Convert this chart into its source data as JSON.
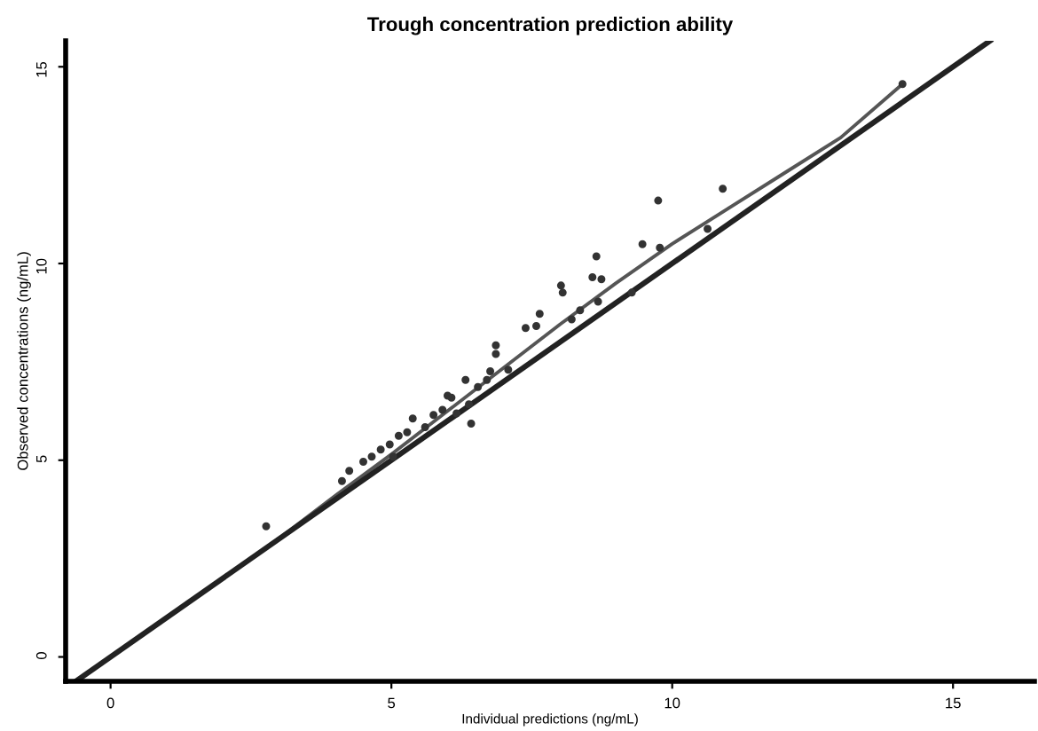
{
  "chart_data": {
    "type": "scatter",
    "title": "Trough concentration prediction ability",
    "xlabel": "Individual predictions (ng/mL)",
    "ylabel": "Observed concentrations (ng/mL)",
    "xlim": [
      -0.8,
      16.45
    ],
    "ylim": [
      -0.62,
      15.66
    ],
    "xticks": [
      0,
      5,
      10,
      15
    ],
    "yticks": [
      0,
      5,
      10,
      15
    ],
    "grid": false,
    "legend": false,
    "series": [
      {
        "color": "#333333",
        "marker": "circle",
        "x": [
          2.77,
          4.12,
          4.25,
          4.5,
          4.65,
          4.81,
          4.97,
          5.03,
          5.13,
          5.28,
          5.38,
          5.6,
          5.75,
          5.91,
          6.07,
          6.16,
          6.38,
          6.42,
          6.54,
          6.7,
          6.0,
          6.32,
          6.76,
          6.86,
          6.86,
          7.08,
          7.39,
          7.58,
          7.64,
          8.02,
          8.05,
          8.21,
          8.36,
          8.58,
          8.65,
          8.68,
          8.74,
          9.28,
          9.47,
          9.75,
          9.78,
          10.63,
          10.9,
          14.1
        ],
        "values": [
          3.32,
          4.47,
          4.73,
          4.96,
          5.09,
          5.27,
          5.4,
          5.09,
          5.62,
          5.71,
          6.06,
          5.84,
          6.15,
          6.28,
          6.59,
          6.19,
          6.42,
          5.93,
          6.86,
          7.04,
          6.64,
          7.04,
          7.26,
          7.92,
          7.7,
          7.3,
          8.36,
          8.41,
          8.72,
          9.44,
          9.26,
          8.58,
          8.81,
          9.65,
          10.18,
          9.03,
          9.6,
          9.26,
          10.49,
          11.6,
          10.4,
          10.88,
          11.9,
          14.56
        ]
      },
      {
        "type": "line",
        "color": "#555555",
        "line_style": "solid",
        "x": [
          2.9,
          4,
          5,
          6,
          7,
          8,
          9,
          10,
          11,
          12,
          13,
          14.1
        ],
        "values": [
          2.9,
          4.1,
          5.15,
          6.25,
          7.35,
          8.45,
          9.5,
          10.5,
          11.4,
          12.3,
          13.2,
          14.56
        ]
      },
      {
        "type": "line",
        "color": "#222222",
        "line_style": "solid",
        "x": [
          -0.62,
          15.66
        ],
        "values": [
          -0.62,
          15.66
        ]
      }
    ]
  }
}
